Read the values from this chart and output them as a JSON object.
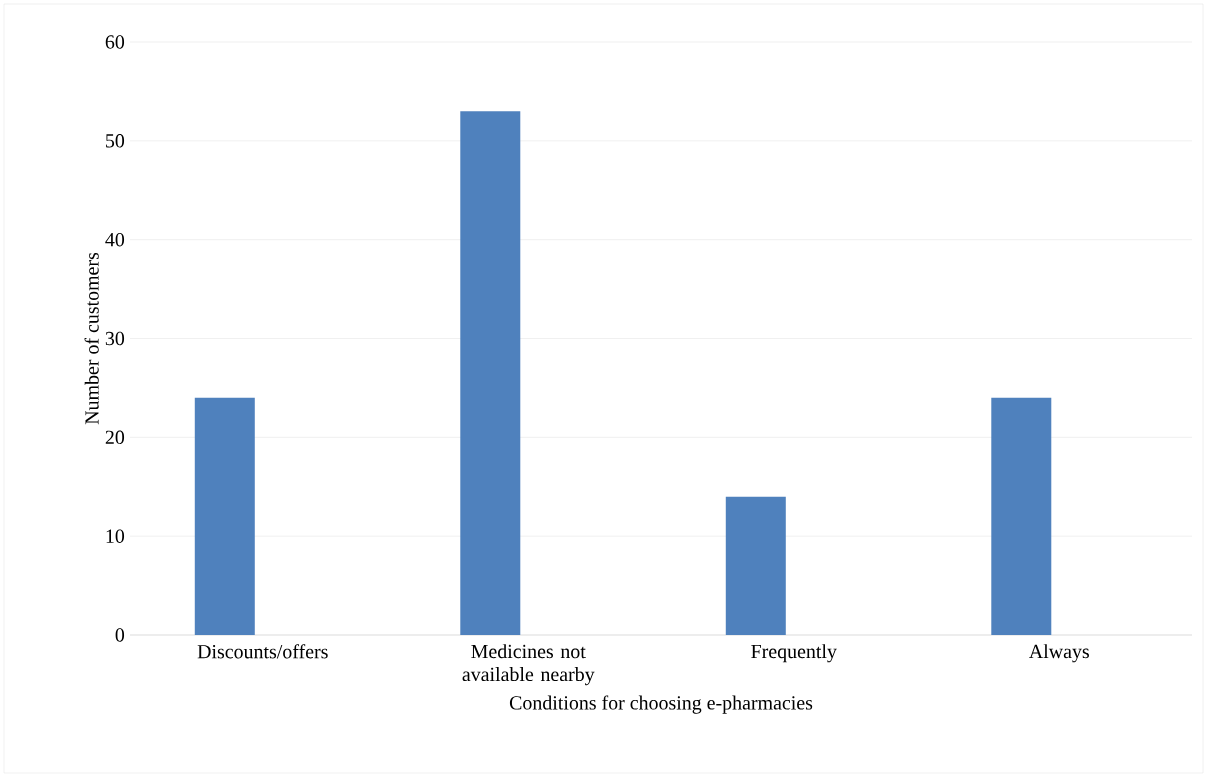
{
  "chart_data": {
    "type": "bar",
    "xlabel": "Conditions for choosing e-pharmacies",
    "ylabel": "Number of customers",
    "categories": [
      "Discounts/offers",
      "Medicines not available nearby",
      "Frequently",
      "Always"
    ],
    "values": [
      24,
      53,
      14,
      24
    ],
    "color": "#4f81bd",
    "ylim": [
      0,
      60
    ],
    "yticks": [
      0,
      10,
      20,
      30,
      40,
      50,
      60
    ],
    "grid": "y"
  }
}
